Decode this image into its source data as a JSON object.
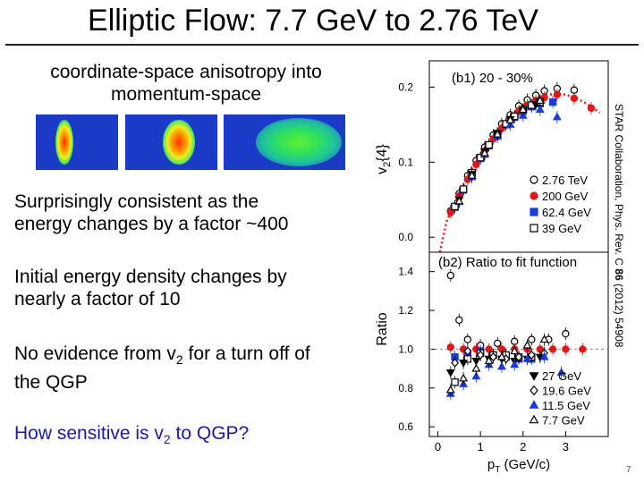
{
  "slide": {
    "title": "Elliptic Flow: 7.7 GeV to 2.76 TeV",
    "coord_text_1": "coordinate-space anisotropy into",
    "coord_text_2": "momentum-space",
    "surprise_1": "Surprisingly consistent as the",
    "surprise_2": "energy changes by a factor ~400",
    "initial_1": "Initial energy density changes by",
    "initial_2": "nearly a factor of 10",
    "noevid_pre": "No evidence from v",
    "noevid_sub": "2",
    "noevid_post": " for a turn off of",
    "noevid_2": "the QGP",
    "how_pre": "How sensitive is v",
    "how_sub": "2",
    "how_post": " to QGP?",
    "slide_number": "7",
    "citation_pre": "STAR Collaboration, Phys. Rev. C ",
    "citation_vol": "86",
    "citation_post": " (2012) 54908"
  },
  "colors": {
    "red": "#e01818",
    "blue": "#1a3bd8",
    "black": "#000000",
    "title_blue": "#1a1aa8"
  },
  "chart_data": [
    {
      "type": "scatter",
      "panel_label": "(b1) 20 - 30%",
      "ylabel_main": "v",
      "ylabel_sub": "2",
      "ylabel_post": "{4}",
      "xlim": [
        -0.2,
        4.0
      ],
      "ylim": [
        -0.02,
        0.235
      ],
      "yticks": [
        {
          "value": 0.0,
          "label": "0.0"
        },
        {
          "value": 0.1,
          "label": "0.1"
        },
        {
          "value": 0.2,
          "label": "0.2"
        }
      ],
      "legend_position": "center-right",
      "series": [
        {
          "name": "2.76 TeV",
          "marker": "circle-open",
          "color": "#000000",
          "x": [
            0.3,
            0.5,
            0.7,
            0.9,
            1.1,
            1.3,
            1.5,
            1.7,
            1.9,
            2.1,
            2.3,
            2.5,
            2.8,
            3.2
          ],
          "y": [
            0.035,
            0.058,
            0.082,
            0.102,
            0.12,
            0.136,
            0.151,
            0.163,
            0.175,
            0.183,
            0.189,
            0.195,
            0.198,
            0.196
          ]
        },
        {
          "name": "200 GeV",
          "marker": "circle-filled",
          "color": "#e01818",
          "x": [
            0.3,
            0.5,
            0.7,
            0.9,
            1.1,
            1.3,
            1.5,
            1.7,
            1.9,
            2.1,
            2.3,
            2.5,
            2.8,
            3.2,
            3.6
          ],
          "y": [
            0.033,
            0.055,
            0.077,
            0.097,
            0.115,
            0.131,
            0.145,
            0.157,
            0.168,
            0.176,
            0.182,
            0.186,
            0.19,
            0.185,
            0.172
          ]
        },
        {
          "name": "62.4 GeV",
          "marker": "square-filled",
          "color": "#1a3bd8",
          "x": [
            0.4,
            0.6,
            0.8,
            1.0,
            1.2,
            1.4,
            1.6,
            1.8,
            2.0,
            2.2,
            2.4,
            2.7
          ],
          "y": [
            0.04,
            0.063,
            0.085,
            0.105,
            0.122,
            0.137,
            0.15,
            0.16,
            0.168,
            0.174,
            0.178,
            0.18
          ]
        },
        {
          "name": "39 GeV",
          "marker": "square-open",
          "color": "#000000",
          "x": [
            0.4,
            0.6,
            0.8,
            1.0,
            1.2,
            1.4,
            1.6,
            1.8,
            2.0,
            2.2,
            2.4
          ],
          "y": [
            0.041,
            0.064,
            0.086,
            0.106,
            0.123,
            0.138,
            0.151,
            0.161,
            0.17,
            0.176,
            0.18
          ]
        },
        {
          "name": "27 GeV",
          "marker": "triangle-down-filled",
          "color": "#000000",
          "x": [
            0.5,
            0.8,
            1.1,
            1.4,
            1.7,
            2.0,
            2.3
          ],
          "y": [
            0.05,
            0.084,
            0.114,
            0.138,
            0.157,
            0.169,
            0.177
          ]
        },
        {
          "name": "11.5 GeV",
          "marker": "triangle-up-filled",
          "color": "#1a3bd8",
          "x": [
            0.5,
            0.8,
            1.1,
            1.4,
            1.7,
            2.0,
            2.4,
            2.8
          ],
          "y": [
            0.047,
            0.08,
            0.11,
            0.134,
            0.15,
            0.162,
            0.17,
            0.16
          ]
        },
        {
          "name": "7.7 GeV",
          "marker": "triangle-up-open",
          "color": "#000000",
          "x": [
            0.5,
            0.8,
            1.1,
            1.4,
            1.7,
            2.0,
            2.4
          ],
          "y": [
            0.048,
            0.082,
            0.112,
            0.137,
            0.156,
            0.17,
            0.182
          ]
        }
      ],
      "fit_line": {
        "color": "#e01818",
        "style": "dotted",
        "x": [
          0.05,
          0.2,
          0.4,
          0.6,
          0.8,
          1.0,
          1.2,
          1.4,
          1.6,
          1.8,
          2.0,
          2.2,
          2.4,
          2.6,
          2.8,
          3.0,
          3.2,
          3.4,
          3.6,
          3.8
        ],
        "y": [
          -0.02,
          0.02,
          0.046,
          0.07,
          0.092,
          0.11,
          0.127,
          0.142,
          0.155,
          0.166,
          0.175,
          0.182,
          0.187,
          0.19,
          0.191,
          0.19,
          0.186,
          0.181,
          0.174,
          0.166
        ]
      }
    },
    {
      "type": "scatter",
      "panel_label": "(b2) Ratio to fit function",
      "ylabel": "Ratio",
      "xlabel_main": "p",
      "xlabel_sub": "T",
      "xlabel_post": " (GeV/c)",
      "xlim": [
        -0.2,
        4.0
      ],
      "ylim": [
        0.55,
        1.5
      ],
      "xticks": [
        {
          "value": 0,
          "label": "0"
        },
        {
          "value": 1,
          "label": "1"
        },
        {
          "value": 2,
          "label": "2"
        },
        {
          "value": 3,
          "label": "3"
        }
      ],
      "yticks": [
        {
          "value": 0.6,
          "label": "0.6"
        },
        {
          "value": 0.8,
          "label": "0.8"
        },
        {
          "value": 1.0,
          "label": "1.0"
        },
        {
          "value": 1.2,
          "label": "1.2"
        },
        {
          "value": 1.4,
          "label": "1.4"
        }
      ],
      "legend_position": "bottom-right",
      "reference_line": 1.0,
      "series": [
        {
          "name": "2.76 TeV",
          "marker": "circle-open",
          "color": "#000000",
          "x": [
            0.3,
            0.5,
            0.7,
            1.0,
            1.4,
            1.8,
            2.2,
            2.6,
            3.0
          ],
          "y": [
            1.38,
            1.15,
            1.05,
            1.02,
            1.03,
            1.04,
            1.05,
            1.05,
            1.08
          ]
        },
        {
          "name": "200 GeV",
          "marker": "circle-filled",
          "color": "#e01818",
          "x": [
            0.3,
            0.6,
            0.9,
            1.2,
            1.5,
            1.8,
            2.1,
            2.4,
            2.7,
            3.0,
            3.4
          ],
          "y": [
            1.01,
            1.0,
            1.0,
            1.0,
            1.0,
            1.0,
            1.0,
            1.0,
            1.0,
            1.0,
            1.0
          ]
        },
        {
          "name": "62.4 GeV",
          "marker": "square-filled",
          "color": "#1a3bd8",
          "x": [
            0.4,
            0.7,
            1.0,
            1.3,
            1.6,
            1.9,
            2.2
          ],
          "y": [
            0.96,
            0.98,
            0.99,
            0.97,
            0.96,
            0.95,
            0.95
          ]
        },
        {
          "name": "39 GeV",
          "marker": "square-open",
          "color": "#000000",
          "x": [
            0.4,
            0.7,
            1.0,
            1.3,
            1.6,
            1.9,
            2.2
          ],
          "y": [
            0.83,
            0.95,
            0.98,
            0.97,
            0.97,
            0.96,
            0.96
          ]
        },
        {
          "name": "27 GeV",
          "marker": "triangle-down-filled",
          "color": "#000000",
          "x": [
            0.3,
            0.6,
            0.9,
            1.2,
            1.5,
            1.8,
            2.1,
            2.4
          ],
          "y": [
            0.88,
            0.93,
            0.94,
            0.95,
            0.95,
            0.94,
            0.95,
            0.96
          ]
        },
        {
          "name": "19.6 GeV",
          "marker": "diamond-open",
          "color": "#000000",
          "x": [
            0.4,
            0.7,
            1.0,
            1.3,
            1.6,
            1.9,
            2.2,
            2.5
          ],
          "y": [
            0.93,
            0.99,
            0.97,
            0.96,
            0.95,
            0.96,
            0.97,
            0.98
          ]
        },
        {
          "name": "11.5 GeV",
          "marker": "triangle-up-filled",
          "color": "#1a3bd8",
          "x": [
            0.3,
            0.6,
            0.9,
            1.2,
            1.5,
            1.8,
            2.1,
            2.5,
            2.9
          ],
          "y": [
            0.77,
            0.82,
            0.86,
            0.92,
            0.91,
            0.92,
            0.95,
            0.96,
            0.88
          ]
        },
        {
          "name": "7.7 GeV",
          "marker": "triangle-up-open",
          "color": "#000000",
          "x": [
            0.3,
            0.6,
            0.9,
            1.2,
            1.5,
            1.8,
            2.1,
            2.5
          ],
          "y": [
            0.79,
            0.85,
            0.9,
            0.94,
            0.96,
            0.99,
            1.02,
            1.05
          ]
        }
      ]
    }
  ]
}
